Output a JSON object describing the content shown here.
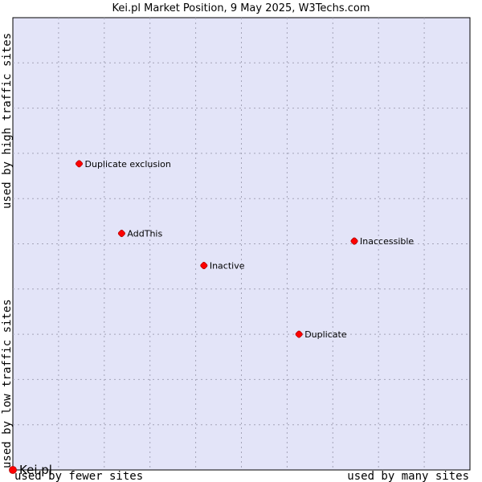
{
  "chart_data": {
    "type": "scatter",
    "title": "Kei.pl Market Position, 9 May 2025, W3Techs.com",
    "xlabel_left": "used by fewer sites",
    "xlabel_right": "used by many sites",
    "ylabel_bottom": "used by low traffic sites",
    "ylabel_top": "used by high traffic sites",
    "xlim": [
      0,
      10
    ],
    "ylim": [
      0,
      10
    ],
    "grid": true,
    "colors": {
      "plot_bg": "#e3e4f8",
      "grid": "#a4a4b8",
      "point": "#ff0000",
      "point_edge": "#b00000",
      "border": "#000000"
    },
    "points": [
      {
        "label": "Duplicate exclusion",
        "x": 1.45,
        "y": 6.77
      },
      {
        "label": "AddThis",
        "x": 2.38,
        "y": 5.23
      },
      {
        "label": "Inactive",
        "x": 4.18,
        "y": 4.52
      },
      {
        "label": "Inaccessible",
        "x": 7.47,
        "y": 5.06
      },
      {
        "label": "Duplicate",
        "x": 6.26,
        "y": 3.0
      }
    ],
    "subject": {
      "label": "Kei.pl",
      "x": 0,
      "y": 0
    }
  }
}
